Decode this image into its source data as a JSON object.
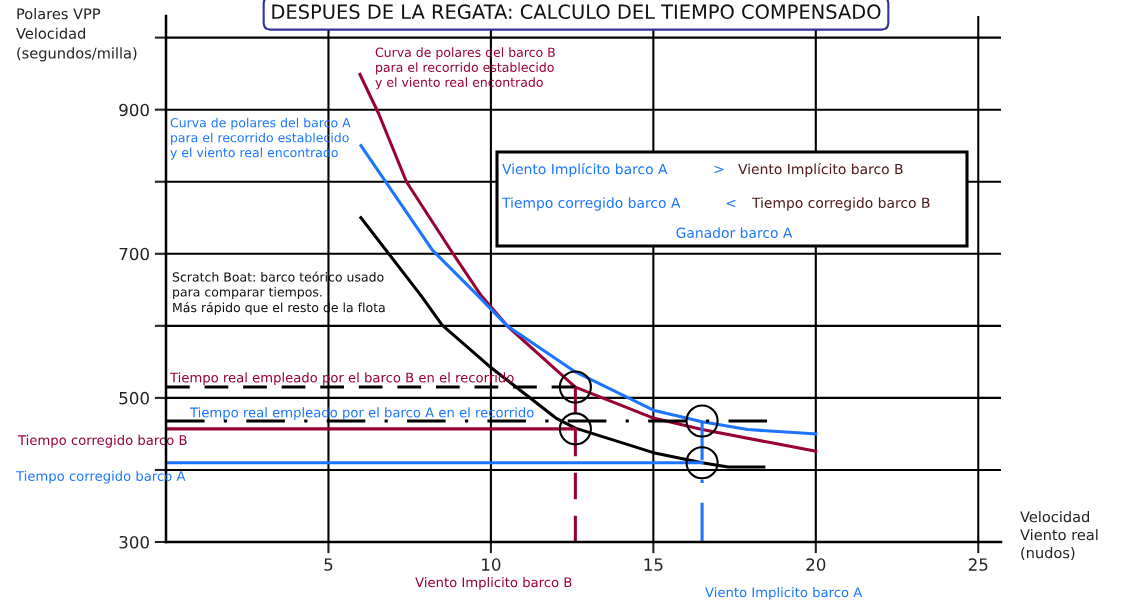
{
  "chart_data": {
    "type": "line",
    "title": "DESPUES DE LA REGATA: CALCULO DEL TIEMPO COMPENSADO",
    "xlabel": "Velocidad\nViento real\n(nudos)",
    "ylabel": "Polares VPP\nVelocidad\n(segundos/milla)",
    "xlim": [
      0,
      25.7
    ],
    "ylim": [
      300,
      1030
    ],
    "xticks": [
      5,
      10,
      15,
      20,
      25
    ],
    "yticks": [
      300,
      {
        "value": 400,
        "label": null
      },
      500,
      {
        "value": 600,
        "label": null
      },
      700,
      {
        "value": 800,
        "label": null
      },
      900,
      {
        "value": 1000,
        "label": null
      }
    ],
    "grid": true,
    "series": [
      {
        "color": "#990033",
        "x": [
          5.97,
          6.55,
          7.4,
          8.85,
          9.7,
          10.5,
          12.6,
          15.0,
          16.5,
          18.6,
          20.0
        ],
        "values": [
          949,
          894,
          800,
          699,
          642,
          600,
          515,
          472,
          456,
          438,
          426
        ]
      },
      {
        "color": "#1a75ff",
        "x": [
          6.0,
          8.2,
          9.6,
          10.5,
          12.6,
          15.0,
          16.5,
          17.9,
          20.0
        ],
        "values": [
          850,
          705,
          642,
          600,
          536,
          483,
          467,
          456,
          450
        ]
      },
      {
        "color": "#000000",
        "x": [
          6.0,
          7.85,
          8.5,
          9.95,
          12.0,
          12.6,
          15.0,
          16.5,
          17.3,
          18.4
        ],
        "values": [
          750,
          642,
          601,
          544,
          472,
          458,
          424,
          410,
          404,
          404
        ]
      },
      {
        "type": "line",
        "color": "#000000",
        "line_style": "dashed",
        "x": [
          0,
          12.6
        ],
        "values": [
          515,
          515
        ]
      },
      {
        "type": "line",
        "color": "#000000",
        "line_style": "dashdot",
        "x": [
          0,
          18.5
        ],
        "values": [
          468,
          468
        ]
      },
      {
        "type": "line",
        "color": "#990033",
        "x": [
          0,
          12.6
        ],
        "values": [
          457,
          457
        ]
      },
      {
        "type": "line",
        "color": "#1a75ff",
        "x": [
          0,
          16.5
        ],
        "values": [
          410,
          410
        ]
      },
      {
        "type": "line",
        "color": "#990033",
        "line_style": "dashed",
        "x": [
          12.6,
          12.6
        ],
        "values": [
          515,
          300
        ]
      },
      {
        "type": "line",
        "color": "#1a75ff",
        "line_style": "dashdot",
        "x": [
          16.5,
          16.5
        ],
        "values": [
          468,
          300
        ]
      },
      {
        "type": "scatter",
        "color": "#000000",
        "marker": "circle",
        "x": [
          12.6,
          12.6,
          16.5,
          16.5
        ],
        "values": [
          515,
          457,
          468,
          410
        ]
      }
    ],
    "annotations": [
      {
        "text": "Curva de polares del barco B\npara el recorrido establecido\ny el viento real encontrado",
        "x": 5.97,
        "y": 949
      },
      {
        "text": "Curva de polares del barco A\npara el recorrido establecido\ny el viento real encontrado",
        "x": 6.0,
        "y": 850
      },
      "Scratch Boat: barco teórico usado\npara comparar tiempos.\nMás rápido que el resto de la flota",
      {
        "text": "Tiempo real empleado por el barco B en el recorrido",
        "x": 0,
        "y": 515
      },
      {
        "text": "Tiempo real empleado por el barco A en el recorrido",
        "x": 0,
        "y": 468
      },
      {
        "text": "Tiempo corregido barco B",
        "x": 0,
        "y": 457
      },
      {
        "text": "Tiempo corregido barco A",
        "x": 0,
        "y": 410
      },
      {
        "text": "Viento Implicito barco B",
        "x": 12.6,
        "y": 300
      },
      "Viento Implicito barco A",
      "Viento Implícito barco A",
      ">",
      "Viento Implícito barco B",
      "Tiempo corregido barco A",
      "<",
      "Tiempo corregido barco B",
      "Ganador barco A"
    ]
  }
}
